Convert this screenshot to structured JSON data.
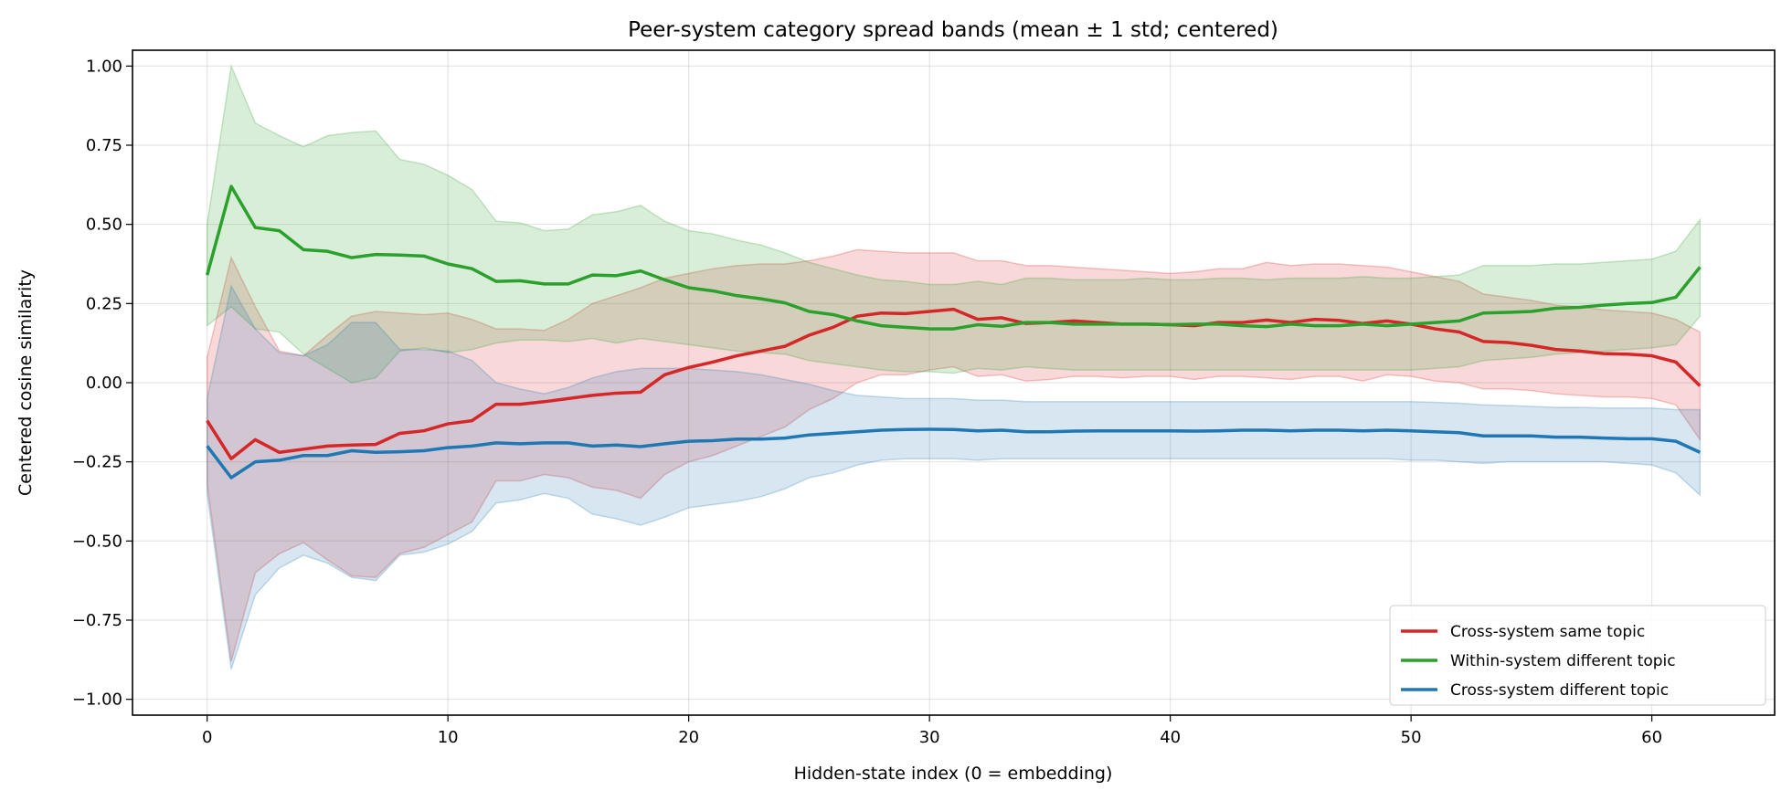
{
  "chart_data": {
    "type": "line",
    "title": "Peer-system category spread bands (mean ± 1 std; centered)",
    "xlabel": "Hidden-state index (0 = embedding)",
    "ylabel": "Centered cosine similarity",
    "xlim": [
      -3.1,
      65.1
    ],
    "ylim": [
      -1.05,
      1.05
    ],
    "xticks": [
      0,
      10,
      20,
      30,
      40,
      50,
      60
    ],
    "yticks": [
      -1.0,
      -0.75,
      -0.5,
      -0.25,
      0.0,
      0.25,
      0.5,
      0.75,
      1.0
    ],
    "ytick_labels": [
      "−1.00",
      "−0.75",
      "−0.50",
      "−0.25",
      "0.00",
      "0.25",
      "0.50",
      "0.75",
      "1.00"
    ],
    "grid": true,
    "legend_position": "bottom-right",
    "series": [
      {
        "name": "Cross-system same topic",
        "color": "#d62728",
        "mean": [
          -0.12,
          -0.24,
          -0.18,
          -0.22,
          -0.21,
          -0.2,
          -0.197,
          -0.195,
          -0.16,
          -0.152,
          -0.13,
          -0.12,
          -0.068,
          -0.068,
          -0.06,
          -0.05,
          -0.04,
          -0.033,
          -0.03,
          0.025,
          0.048,
          0.065,
          0.085,
          0.1,
          0.115,
          0.15,
          0.175,
          0.21,
          0.22,
          0.218,
          0.225,
          0.232,
          0.2,
          0.205,
          0.187,
          0.19,
          0.195,
          0.19,
          0.185,
          0.185,
          0.183,
          0.18,
          0.19,
          0.19,
          0.198,
          0.19,
          0.2,
          0.197,
          0.187,
          0.195,
          0.185,
          0.17,
          0.16,
          0.13,
          0.127,
          0.118,
          0.105,
          0.1,
          0.092,
          0.09,
          0.085,
          0.065,
          -0.01
        ],
        "upper": [
          0.08,
          0.395,
          0.24,
          0.1,
          0.085,
          0.15,
          0.21,
          0.225,
          0.22,
          0.215,
          0.22,
          0.2,
          0.17,
          0.17,
          0.165,
          0.2,
          0.25,
          0.275,
          0.3,
          0.33,
          0.345,
          0.36,
          0.37,
          0.375,
          0.375,
          0.385,
          0.4,
          0.42,
          0.415,
          0.41,
          0.41,
          0.41,
          0.385,
          0.385,
          0.37,
          0.37,
          0.365,
          0.36,
          0.355,
          0.35,
          0.345,
          0.35,
          0.36,
          0.36,
          0.38,
          0.37,
          0.375,
          0.375,
          0.37,
          0.365,
          0.35,
          0.335,
          0.32,
          0.28,
          0.27,
          0.26,
          0.245,
          0.24,
          0.23,
          0.225,
          0.22,
          0.2,
          0.16
        ],
        "lower": [
          -0.32,
          -0.88,
          -0.6,
          -0.54,
          -0.505,
          -0.56,
          -0.61,
          -0.615,
          -0.54,
          -0.52,
          -0.48,
          -0.44,
          -0.31,
          -0.31,
          -0.29,
          -0.3,
          -0.33,
          -0.34,
          -0.365,
          -0.29,
          -0.25,
          -0.23,
          -0.2,
          -0.17,
          -0.14,
          -0.085,
          -0.05,
          0.0,
          0.025,
          0.025,
          0.04,
          0.05,
          0.02,
          0.025,
          0.005,
          0.01,
          0.02,
          0.02,
          0.015,
          0.02,
          0.02,
          0.01,
          0.02,
          0.02,
          0.015,
          0.01,
          0.02,
          0.02,
          0.005,
          0.025,
          0.02,
          0.005,
          0.0,
          -0.02,
          -0.02,
          -0.025,
          -0.035,
          -0.04,
          -0.045,
          -0.045,
          -0.05,
          -0.07,
          -0.18
        ]
      },
      {
        "name": "Within-system different topic",
        "color": "#2ca02c",
        "mean": [
          0.34,
          0.62,
          0.49,
          0.48,
          0.42,
          0.415,
          0.395,
          0.405,
          0.403,
          0.4,
          0.375,
          0.36,
          0.32,
          0.322,
          0.312,
          0.312,
          0.34,
          0.338,
          0.353,
          0.325,
          0.3,
          0.29,
          0.275,
          0.265,
          0.252,
          0.225,
          0.215,
          0.195,
          0.18,
          0.175,
          0.17,
          0.17,
          0.183,
          0.178,
          0.19,
          0.19,
          0.185,
          0.185,
          0.185,
          0.185,
          0.183,
          0.185,
          0.185,
          0.18,
          0.177,
          0.185,
          0.18,
          0.18,
          0.185,
          0.18,
          0.185,
          0.19,
          0.195,
          0.22,
          0.222,
          0.225,
          0.235,
          0.238,
          0.245,
          0.25,
          0.253,
          0.27,
          0.365
        ],
        "upper": [
          0.5,
          1.0,
          0.82,
          0.78,
          0.745,
          0.78,
          0.79,
          0.795,
          0.705,
          0.69,
          0.655,
          0.61,
          0.51,
          0.505,
          0.48,
          0.485,
          0.53,
          0.54,
          0.56,
          0.51,
          0.48,
          0.47,
          0.45,
          0.435,
          0.41,
          0.38,
          0.36,
          0.34,
          0.325,
          0.32,
          0.31,
          0.31,
          0.32,
          0.31,
          0.33,
          0.33,
          0.325,
          0.325,
          0.325,
          0.33,
          0.325,
          0.325,
          0.33,
          0.33,
          0.325,
          0.33,
          0.33,
          0.33,
          0.335,
          0.33,
          0.33,
          0.335,
          0.34,
          0.37,
          0.37,
          0.37,
          0.375,
          0.375,
          0.38,
          0.385,
          0.39,
          0.415,
          0.515
        ],
        "lower": [
          0.18,
          0.24,
          0.17,
          0.16,
          0.09,
          0.045,
          0.0,
          0.015,
          0.1,
          0.11,
          0.095,
          0.105,
          0.125,
          0.135,
          0.135,
          0.13,
          0.14,
          0.125,
          0.14,
          0.13,
          0.12,
          0.11,
          0.1,
          0.095,
          0.09,
          0.07,
          0.06,
          0.05,
          0.04,
          0.035,
          0.035,
          0.03,
          0.045,
          0.04,
          0.05,
          0.045,
          0.04,
          0.04,
          0.04,
          0.04,
          0.04,
          0.04,
          0.04,
          0.04,
          0.04,
          0.04,
          0.04,
          0.04,
          0.04,
          0.04,
          0.04,
          0.045,
          0.05,
          0.07,
          0.075,
          0.08,
          0.09,
          0.095,
          0.1,
          0.105,
          0.11,
          0.12,
          0.21
        ]
      },
      {
        "name": "Cross-system different topic",
        "color": "#1f77b4",
        "mean": [
          -0.2,
          -0.3,
          -0.25,
          -0.245,
          -0.23,
          -0.23,
          -0.215,
          -0.22,
          -0.218,
          -0.215,
          -0.205,
          -0.2,
          -0.19,
          -0.193,
          -0.19,
          -0.19,
          -0.2,
          -0.197,
          -0.202,
          -0.193,
          -0.185,
          -0.183,
          -0.178,
          -0.178,
          -0.175,
          -0.165,
          -0.16,
          -0.155,
          -0.15,
          -0.148,
          -0.147,
          -0.148,
          -0.152,
          -0.15,
          -0.155,
          -0.155,
          -0.153,
          -0.152,
          -0.152,
          -0.152,
          -0.152,
          -0.153,
          -0.152,
          -0.15,
          -0.15,
          -0.152,
          -0.15,
          -0.15,
          -0.152,
          -0.15,
          -0.152,
          -0.155,
          -0.158,
          -0.168,
          -0.168,
          -0.168,
          -0.172,
          -0.172,
          -0.175,
          -0.177,
          -0.177,
          -0.185,
          -0.22
        ],
        "upper": [
          -0.05,
          0.305,
          0.17,
          0.095,
          0.085,
          0.12,
          0.19,
          0.19,
          0.105,
          0.105,
          0.1,
          0.07,
          0.0,
          -0.02,
          -0.035,
          -0.015,
          0.015,
          0.035,
          0.045,
          0.045,
          0.045,
          0.04,
          0.035,
          0.025,
          0.01,
          -0.005,
          -0.025,
          -0.04,
          -0.045,
          -0.05,
          -0.05,
          -0.05,
          -0.055,
          -0.055,
          -0.06,
          -0.06,
          -0.06,
          -0.06,
          -0.06,
          -0.06,
          -0.06,
          -0.06,
          -0.06,
          -0.06,
          -0.06,
          -0.06,
          -0.06,
          -0.06,
          -0.06,
          -0.06,
          -0.06,
          -0.062,
          -0.065,
          -0.07,
          -0.072,
          -0.075,
          -0.078,
          -0.078,
          -0.08,
          -0.08,
          -0.08,
          -0.085,
          -0.085
        ],
        "lower": [
          -0.35,
          -0.905,
          -0.67,
          -0.585,
          -0.545,
          -0.57,
          -0.615,
          -0.625,
          -0.545,
          -0.535,
          -0.51,
          -0.47,
          -0.38,
          -0.37,
          -0.35,
          -0.365,
          -0.415,
          -0.43,
          -0.45,
          -0.425,
          -0.395,
          -0.385,
          -0.375,
          -0.36,
          -0.335,
          -0.3,
          -0.285,
          -0.26,
          -0.245,
          -0.24,
          -0.24,
          -0.24,
          -0.245,
          -0.24,
          -0.24,
          -0.24,
          -0.24,
          -0.24,
          -0.24,
          -0.24,
          -0.24,
          -0.24,
          -0.24,
          -0.24,
          -0.24,
          -0.24,
          -0.24,
          -0.24,
          -0.24,
          -0.24,
          -0.245,
          -0.245,
          -0.25,
          -0.255,
          -0.25,
          -0.25,
          -0.25,
          -0.25,
          -0.25,
          -0.255,
          -0.26,
          -0.285,
          -0.355
        ]
      }
    ]
  }
}
